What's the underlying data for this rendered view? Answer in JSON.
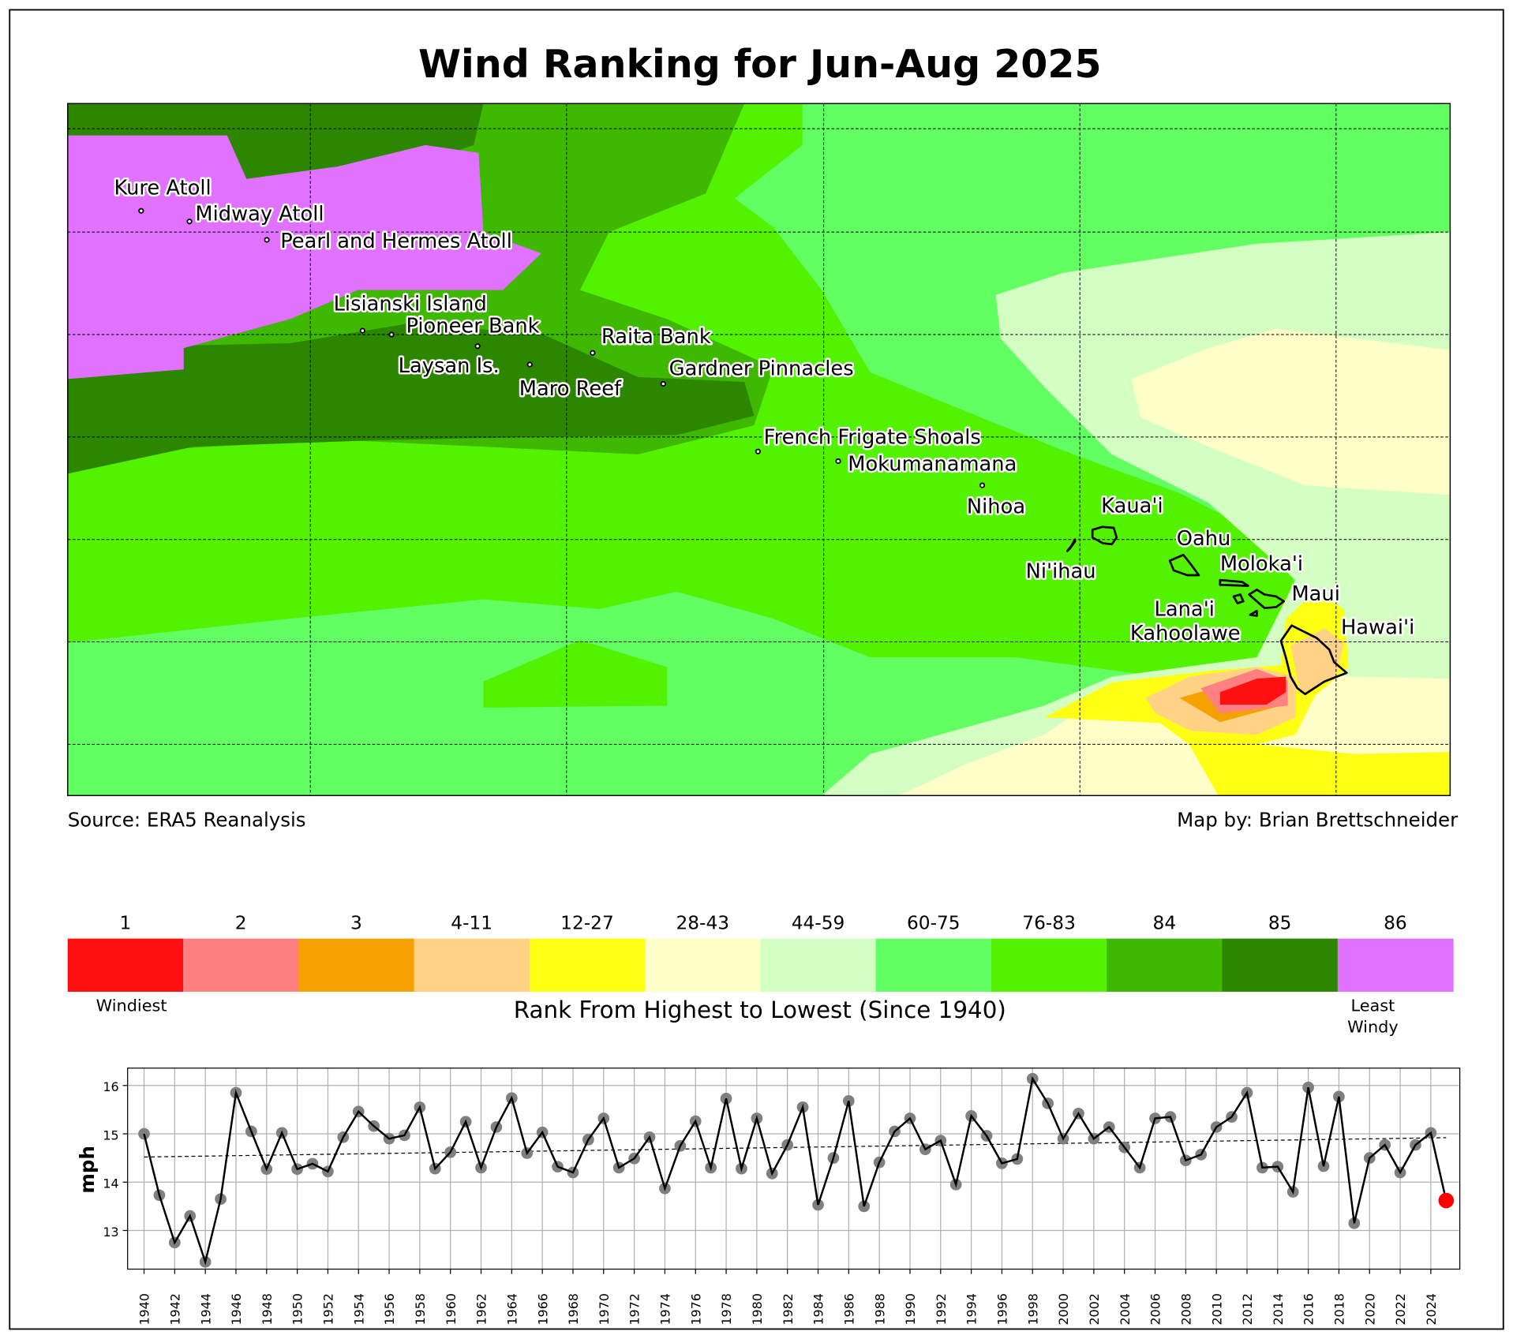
{
  "title": "Wind Ranking for Jun-Aug 2025",
  "source": "Source: ERA5 Reanalysis",
  "credit": "Map by: Brian Brettschneider",
  "map_labels": [
    "Kure Atoll",
    "Midway Atoll",
    "Pearl and Hermes Atoll",
    "Lisianski Island",
    "Pioneer Bank",
    "Raita Bank",
    "Laysan Is.",
    "Maro Reef",
    "Gardner Pinnacles",
    "French Frigate Shoals",
    "Mokumanamana",
    "Nihoa",
    "Kaua'i",
    "Ni'ihau",
    "Oahu",
    "Moloka'i",
    "Maui",
    "Lana'i",
    "Kahoolawe",
    "Hawai'i"
  ],
  "legend": {
    "title": "Rank From Highest to Lowest (Since 1940)",
    "low_label": "Windiest",
    "high_label_1": "Least",
    "high_label_2": "Windy",
    "bins": [
      {
        "label": "1",
        "color": "#ff1010"
      },
      {
        "label": "2",
        "color": "#ff8080"
      },
      {
        "label": "3",
        "color": "#f5a200"
      },
      {
        "label": "4-11",
        "color": "#ffd285"
      },
      {
        "label": "12-27",
        "color": "#ffff14"
      },
      {
        "label": "28-43",
        "color": "#ffffc8"
      },
      {
        "label": "44-59",
        "color": "#d4ffc2"
      },
      {
        "label": "60-75",
        "color": "#62ff62"
      },
      {
        "label": "76-83",
        "color": "#52f200"
      },
      {
        "label": "84",
        "color": "#3eb800"
      },
      {
        "label": "85",
        "color": "#2c8600"
      },
      {
        "label": "86",
        "color": "#e072ff"
      }
    ]
  },
  "chart_data": {
    "type": "line",
    "title": "",
    "xlabel": "",
    "ylabel": "mph",
    "ylim": [
      12.2,
      16.36
    ],
    "yticks": [
      13,
      14,
      15,
      16
    ],
    "xlim": [
      1939,
      2026
    ],
    "grid": true,
    "x": [
      1940,
      1941,
      1942,
      1943,
      1944,
      1945,
      1946,
      1947,
      1948,
      1949,
      1950,
      1951,
      1952,
      1953,
      1954,
      1955,
      1956,
      1957,
      1958,
      1959,
      1960,
      1961,
      1962,
      1963,
      1964,
      1965,
      1966,
      1967,
      1968,
      1969,
      1970,
      1971,
      1972,
      1973,
      1974,
      1975,
      1976,
      1977,
      1978,
      1979,
      1980,
      1981,
      1982,
      1983,
      1984,
      1985,
      1986,
      1987,
      1988,
      1989,
      1990,
      1991,
      1992,
      1993,
      1994,
      1995,
      1996,
      1997,
      1998,
      1999,
      2000,
      2001,
      2002,
      2003,
      2004,
      2005,
      2006,
      2007,
      2008,
      2009,
      2010,
      2011,
      2012,
      2013,
      2014,
      2015,
      2016,
      2017,
      2018,
      2019,
      2020,
      2021,
      2022,
      2023,
      2024,
      2025
    ],
    "values": [
      15.0,
      13.73,
      12.75,
      13.3,
      12.35,
      13.65,
      15.85,
      15.05,
      14.27,
      15.02,
      14.27,
      14.38,
      14.22,
      14.93,
      15.46,
      15.16,
      14.9,
      14.97,
      15.55,
      14.28,
      14.62,
      15.25,
      14.3,
      15.14,
      15.74,
      14.6,
      15.03,
      14.32,
      14.2,
      14.88,
      15.32,
      14.3,
      14.49,
      14.93,
      13.87,
      14.75,
      15.26,
      14.3,
      15.73,
      14.28,
      15.32,
      14.18,
      14.77,
      15.55,
      13.53,
      14.5,
      15.68,
      13.5,
      14.41,
      15.05,
      15.32,
      14.68,
      14.86,
      13.95,
      15.37,
      14.96,
      14.39,
      14.48,
      16.14,
      15.63,
      14.9,
      15.42,
      14.9,
      15.14,
      14.72,
      14.3,
      15.32,
      15.35,
      14.45,
      14.57,
      15.14,
      15.35,
      15.85,
      14.3,
      14.32,
      13.8,
      15.96,
      14.33,
      15.77,
      13.15,
      14.5,
      14.77,
      14.2,
      14.77,
      15.02,
      13.62
    ],
    "highlight": {
      "x": 2025,
      "value": 13.62,
      "color": "#ff0000"
    },
    "trend": {
      "start": [
        1940,
        14.52
      ],
      "end": [
        2025,
        14.92
      ]
    },
    "xtick_labels": [
      "1940",
      "1942",
      "1944",
      "1946",
      "1948",
      "1950",
      "1952",
      "1954",
      "1956",
      "1958",
      "1960",
      "1962",
      "1964",
      "1966",
      "1968",
      "1970",
      "1972",
      "1974",
      "1976",
      "1978",
      "1980",
      "1982",
      "1984",
      "1986",
      "1988",
      "1990",
      "1992",
      "1994",
      "1996",
      "1998",
      "2000",
      "2002",
      "2004",
      "2006",
      "2008",
      "2010",
      "2012",
      "2014",
      "2016",
      "2018",
      "2020",
      "2022",
      "2024"
    ]
  }
}
